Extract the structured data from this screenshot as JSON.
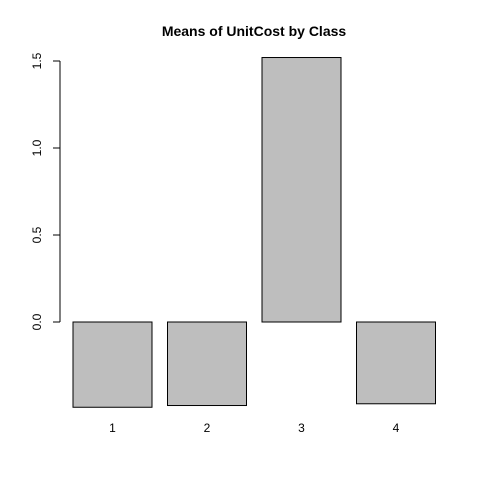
{
  "chart_data": {
    "type": "bar",
    "title": "Means of UnitCost by Class",
    "xlabel": "",
    "ylabel": "",
    "categories": [
      "1",
      "2",
      "3",
      "4"
    ],
    "values": [
      -0.49,
      -0.48,
      1.52,
      -0.47
    ],
    "ylim": [
      -0.49,
      1.52
    ],
    "y_ticks": [
      0.0,
      0.5,
      1.0,
      1.5
    ],
    "y_tick_labels": [
      "0.0",
      "0.5",
      "1.0",
      "1.5"
    ],
    "grid": false,
    "legend": "none",
    "bar_color": "#bebebe",
    "bar_border_color": "#000000"
  }
}
